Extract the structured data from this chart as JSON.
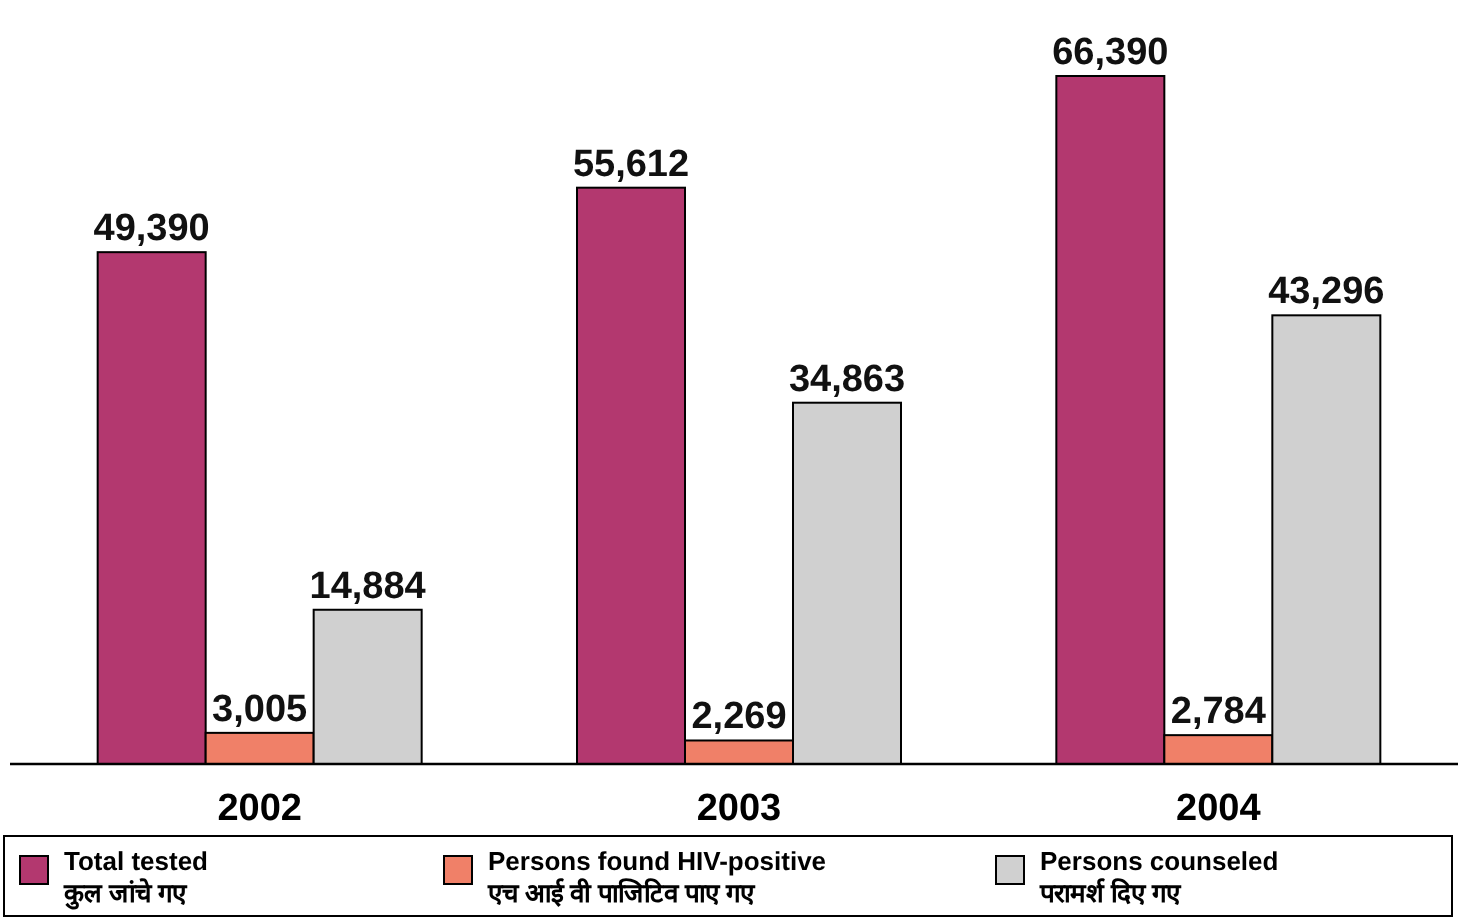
{
  "chart_data": {
    "type": "bar",
    "categories": [
      "2002",
      "2003",
      "2004"
    ],
    "legend": "bottom",
    "series": [
      {
        "name": "Total tested\nकुल जांचे गए",
        "color": "#b3386f",
        "values": [
          49390,
          55612,
          66390
        ],
        "value_labels": [
          "49,390",
          "55,612",
          "66,390"
        ]
      },
      {
        "name": "Persons found HIV-positive\nएच आई वी पाजिटिव पाए गए",
        "color": "#f08068",
        "values": [
          3005,
          2269,
          2784
        ],
        "value_labels": [
          "3,005",
          "2,269",
          "2,784"
        ]
      },
      {
        "name": "Persons counseled\nपरामर्श दिए गए",
        "color": "#d0d0d0",
        "values": [
          14884,
          34863,
          43296
        ],
        "value_labels": [
          "14,884",
          "34,863",
          "43,296"
        ]
      }
    ]
  }
}
